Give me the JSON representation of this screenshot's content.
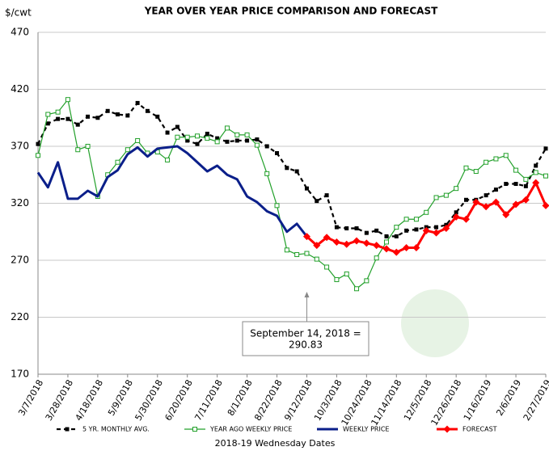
{
  "chart_data": {
    "type": "line",
    "title": "YEAR OVER YEAR PRICE COMPARISON AND FORECAST",
    "y_label": "$/cwt",
    "x_label": "2018-19 Wednesday Dates",
    "categories": [
      "3/7/2018",
      null,
      null,
      "3/28/2018",
      null,
      null,
      "4/18/2018",
      null,
      null,
      "5/9/2018",
      null,
      null,
      "5/30/2018",
      null,
      null,
      "6/20/2018",
      null,
      null,
      "7/11/2018",
      null,
      null,
      "8/1/2018",
      null,
      null,
      "8/22/2018",
      null,
      null,
      "9/12/2018",
      null,
      null,
      "10/3/2018",
      null,
      null,
      "10/24/2018",
      null,
      null,
      "11/14/2018",
      null,
      null,
      "12/5/2018",
      null,
      null,
      "12/26/2018",
      null,
      null,
      "1/16/2019",
      null,
      null,
      "2/6/2019",
      null,
      null,
      "2/27/2019"
    ],
    "ylim": [
      170,
      470
    ],
    "yticks": [
      170,
      220,
      270,
      320,
      370,
      420,
      470
    ],
    "grid": true,
    "legend": "bottom",
    "series": [
      {
        "name": "5 YR. MONTHLY AVG.",
        "color": "#000000",
        "line_style": "dashed",
        "marker": "square",
        "values": [
          372,
          390,
          394,
          394,
          389,
          396,
          395,
          401,
          398,
          397,
          408,
          401,
          396,
          382,
          387,
          375,
          372,
          381,
          377,
          374,
          375,
          375,
          376,
          370,
          364,
          351,
          348,
          333,
          322,
          327,
          299,
          298,
          298,
          294,
          296,
          291,
          291,
          296,
          297,
          299,
          299,
          301,
          312,
          323,
          323,
          327,
          332,
          337,
          337,
          335,
          353,
          368
        ]
      },
      {
        "name": "YEAR AGO WEEKLY PRICE",
        "color": "#22a02a",
        "line_style": "solid",
        "marker": "open-square",
        "values": [
          362,
          398,
          400,
          411,
          367,
          370,
          326,
          345,
          356,
          367,
          375,
          364,
          365,
          358,
          378,
          378,
          379,
          377,
          374,
          386,
          380,
          380,
          371,
          346,
          318,
          279,
          275,
          276,
          271,
          264,
          253,
          258,
          245,
          252,
          272,
          286,
          299,
          306,
          306,
          312,
          325,
          327,
          333,
          351,
          348,
          356,
          359,
          362,
          349,
          341,
          347,
          344
        ]
      },
      {
        "name": "WEEKLY PRICE",
        "color": "#0b1f8a",
        "line_style": "thick",
        "marker": "none",
        "values": [
          347,
          334,
          356,
          324,
          324,
          331,
          326,
          343,
          349,
          363,
          369,
          361,
          368,
          369,
          370,
          364,
          356,
          348,
          353,
          345,
          341,
          326,
          321,
          313,
          309,
          295,
          302,
          290.83,
          null,
          null,
          null,
          null,
          null,
          null,
          null,
          null,
          null,
          null,
          null,
          null,
          null,
          null,
          null,
          null,
          null,
          null,
          null,
          null,
          null,
          null,
          null,
          null
        ]
      },
      {
        "name": "FORECAST",
        "color": "#ff0000",
        "line_style": "thick",
        "marker": "diamond",
        "values": [
          null,
          null,
          null,
          null,
          null,
          null,
          null,
          null,
          null,
          null,
          null,
          null,
          null,
          null,
          null,
          null,
          null,
          null,
          null,
          null,
          null,
          null,
          null,
          null,
          null,
          null,
          null,
          290.83,
          283,
          290,
          286,
          284,
          287,
          285,
          283,
          280,
          277,
          281,
          281,
          296,
          294,
          298,
          308,
          306,
          321,
          317,
          321,
          310,
          319,
          323,
          338,
          318
        ]
      }
    ],
    "annotation": {
      "lines": [
        "September 14, 2018 =",
        "290.83"
      ],
      "index": 27
    }
  }
}
